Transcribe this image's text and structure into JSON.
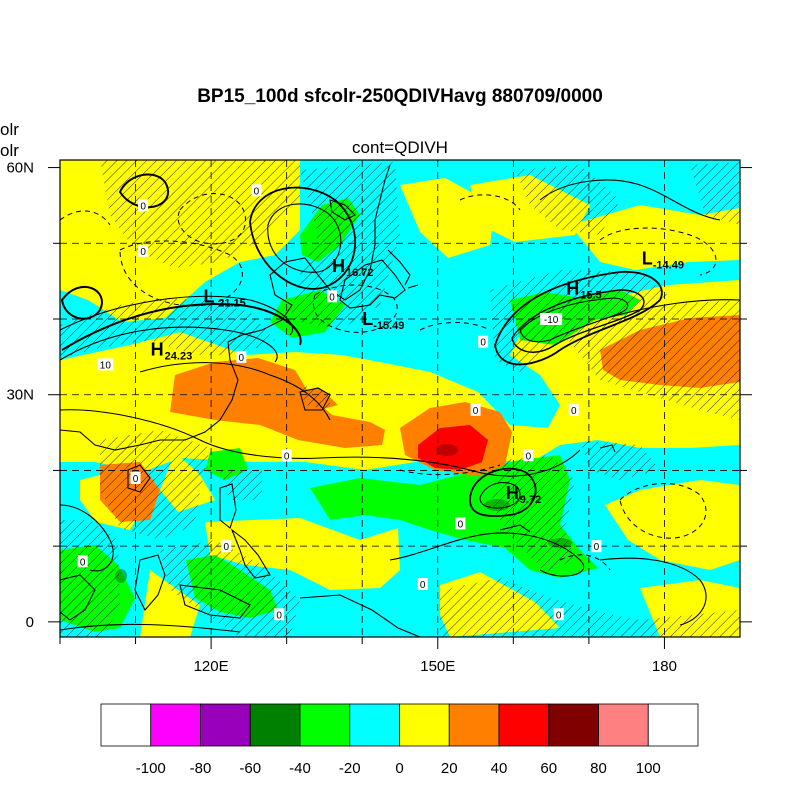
{
  "figure": {
    "title": "BP15_100d sfcolr-250QDIVHavg  880709/0000",
    "subtitle": "cont=QDIVH",
    "left_label_1": "olr",
    "left_label_2": "olr"
  },
  "axes": {
    "x_ticks": [
      {
        "value": 120,
        "label": "120E"
      },
      {
        "value": 150,
        "label": "150E"
      },
      {
        "value": 180,
        "label": "180"
      }
    ],
    "y_ticks": [
      {
        "value": 60,
        "label": "60N"
      },
      {
        "value": 30,
        "label": "30N"
      },
      {
        "value": 0,
        "label": "0"
      }
    ],
    "lon_range": [
      100,
      190
    ],
    "lat_range": [
      -2,
      61
    ]
  },
  "pressure_centers": [
    {
      "type": "H",
      "value": "16.72",
      "lon": 136,
      "lat": 47
    },
    {
      "type": "L",
      "value": "-21.15",
      "lon": 119,
      "lat": 43
    },
    {
      "type": "L",
      "value": "-15.49",
      "lon": 140,
      "lat": 40
    },
    {
      "type": "H",
      "value": "24.23",
      "lon": 112,
      "lat": 36
    },
    {
      "type": "L",
      "value": "-14.49",
      "lon": 177,
      "lat": 48
    },
    {
      "type": "H",
      "value": "15.5",
      "lon": 167,
      "lat": 44
    },
    {
      "type": "H",
      "value": "9.72",
      "lon": 159,
      "lat": 17
    }
  ],
  "contour_labels": [
    {
      "text": "0",
      "lon": 111,
      "lat": 49
    },
    {
      "text": "0",
      "lon": 111,
      "lat": 55
    },
    {
      "text": "0",
      "lon": 126,
      "lat": 57
    },
    {
      "text": "0",
      "lon": 136,
      "lat": 43
    },
    {
      "text": "10",
      "lon": 106,
      "lat": 34
    },
    {
      "text": "0",
      "lon": 124,
      "lat": 35
    },
    {
      "text": "0",
      "lon": 130,
      "lat": 22
    },
    {
      "text": "0",
      "lon": 110,
      "lat": 19
    },
    {
      "text": "0",
      "lon": 103,
      "lat": 8
    },
    {
      "text": "0",
      "lon": 122,
      "lat": 10
    },
    {
      "text": "0",
      "lon": 129,
      "lat": 1
    },
    {
      "text": "0",
      "lon": 153,
      "lat": 13
    },
    {
      "text": "0",
      "lon": 148,
      "lat": 5
    },
    {
      "text": "0",
      "lon": 156,
      "lat": 37
    },
    {
      "text": "0",
      "lon": 155,
      "lat": 28
    },
    {
      "text": "-10",
      "lon": 165,
      "lat": 40
    },
    {
      "text": "0",
      "lon": 162,
      "lat": 22
    },
    {
      "text": "0",
      "lon": 168,
      "lat": 28
    },
    {
      "text": "0",
      "lon": 171,
      "lat": 10
    },
    {
      "text": "0",
      "lon": 166,
      "lat": 1
    }
  ],
  "colorbar": {
    "labels": [
      "-100",
      "-80",
      "-60",
      "-40",
      "-20",
      "0",
      "20",
      "40",
      "60",
      "80",
      "100"
    ],
    "colors": [
      "#ffffff",
      "#ff00ff",
      "#9900bb",
      "#008000",
      "#00ff00",
      "#00ffff",
      "#ffff00",
      "#ff8000",
      "#ff0000",
      "#800000",
      "#ff8080",
      "#ffffff"
    ]
  },
  "field_colors": {
    "neg40": "#00ff00",
    "neg20": "#00ffff",
    "pos20": "#ffff00",
    "pos40": "#ff8000",
    "pos60": "#ff0000",
    "pos80": "#800000"
  }
}
